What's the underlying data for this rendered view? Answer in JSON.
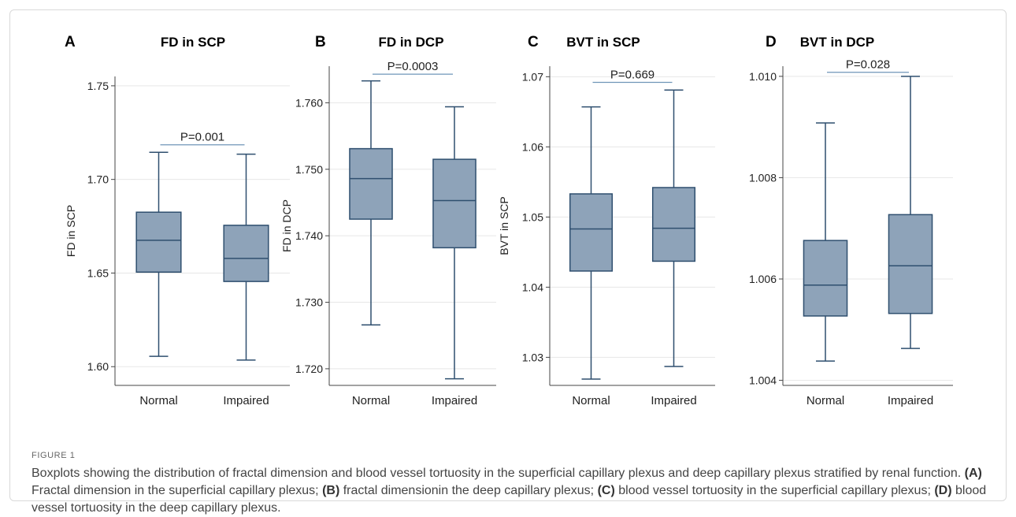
{
  "figure": {
    "label": "FIGURE 1",
    "caption_parts": [
      {
        "t": "Boxplots showing the distribution of fractal dimension and blood vessel tortuosity in the superficial capillary plexus and deep capillary plexus stratified by renal function. ",
        "b": false
      },
      {
        "t": "(A)",
        "b": true
      },
      {
        "t": " Fractal dimension in the superficial capillary plexus; ",
        "b": false
      },
      {
        "t": "(B)",
        "b": true
      },
      {
        "t": " fractal dimensionin the deep capillary plexus; ",
        "b": false
      },
      {
        "t": "(C)",
        "b": true
      },
      {
        "t": " blood vessel tortuosity in the superficial capillary plexus; ",
        "b": false
      },
      {
        "t": "(D)",
        "b": true
      },
      {
        "t": " blood vessel tortuosity in the deep capillary plexus.",
        "b": false
      }
    ]
  },
  "colors": {
    "box_fill": "#8ea3b9",
    "box_stroke": "#2f4f6f",
    "grid": "#e7e7e7",
    "axis": "#444444",
    "sig_line": "#6f95b8"
  },
  "chart_data": [
    {
      "type": "boxplot",
      "panel": "A",
      "title": "FD in SCP",
      "ylabel": "FD in SCP",
      "categories": [
        "Normal",
        "Impaired"
      ],
      "ylim": [
        1.59,
        1.755
      ],
      "yticks": [
        1.6,
        1.65,
        1.7,
        1.75
      ],
      "ytick_labels": [
        "1.60",
        "1.65",
        "1.70",
        "1.75"
      ],
      "boxes": [
        {
          "min": 1.6055,
          "q1": 1.6505,
          "median": 1.6675,
          "q3": 1.6825,
          "max": 1.7145
        },
        {
          "min": 1.6035,
          "q1": 1.6455,
          "median": 1.6578,
          "q3": 1.6755,
          "max": 1.7135
        }
      ],
      "significance": {
        "label": "P=0.001",
        "value": 1.7185
      },
      "grid": true
    },
    {
      "type": "boxplot",
      "panel": "B",
      "title": "FD in DCP",
      "ylabel": "FD in DCP",
      "categories": [
        "Normal",
        "Impaired"
      ],
      "ylim": [
        1.7175,
        1.7655
      ],
      "yticks": [
        1.72,
        1.73,
        1.74,
        1.75,
        1.76
      ],
      "ytick_labels": [
        "1.720",
        "1.730",
        "1.740",
        "1.750",
        "1.760"
      ],
      "boxes": [
        {
          "min": 1.7266,
          "q1": 1.7425,
          "median": 1.7486,
          "q3": 1.7531,
          "max": 1.7633
        },
        {
          "min": 1.7185,
          "q1": 1.7382,
          "median": 1.7453,
          "q3": 1.7515,
          "max": 1.7594
        }
      ],
      "significance": {
        "label": "P=0.0003",
        "value": 1.7643
      },
      "grid": true
    },
    {
      "type": "boxplot",
      "panel": "C",
      "title": "BVT in SCP",
      "ylabel": "BVT in SCP",
      "categories": [
        "Normal",
        "Impaired"
      ],
      "ylim": [
        1.026,
        1.0715
      ],
      "yticks": [
        1.03,
        1.04,
        1.05,
        1.06,
        1.07
      ],
      "ytick_labels": [
        "1.03",
        "1.04",
        "1.05",
        "1.06",
        "1.07"
      ],
      "boxes": [
        {
          "min": 1.0269,
          "q1": 1.0423,
          "median": 1.0483,
          "q3": 1.0533,
          "max": 1.0657
        },
        {
          "min": 1.0287,
          "q1": 1.0437,
          "median": 1.0484,
          "q3": 1.0542,
          "max": 1.0681
        }
      ],
      "significance": {
        "label": "P=0.669",
        "value": 1.0692
      },
      "grid": true
    },
    {
      "type": "boxplot",
      "panel": "D",
      "title": "BVT in DCP",
      "ylabel": "",
      "categories": [
        "Normal",
        "Impaired"
      ],
      "ylim": [
        1.0039,
        1.0102
      ],
      "yticks": [
        1.004,
        1.006,
        1.008,
        1.01
      ],
      "ytick_labels": [
        "1.004",
        "1.006",
        "1.008",
        "1.010"
      ],
      "boxes": [
        {
          "min": 1.00438,
          "q1": 1.00527,
          "median": 1.00588,
          "q3": 1.00676,
          "max": 1.00908
        },
        {
          "min": 1.00463,
          "q1": 1.00532,
          "median": 1.00626,
          "q3": 1.00727,
          "max": 1.01
        }
      ],
      "significance": {
        "label": "P=0.028",
        "value": 1.01008
      },
      "grid": true
    }
  ]
}
